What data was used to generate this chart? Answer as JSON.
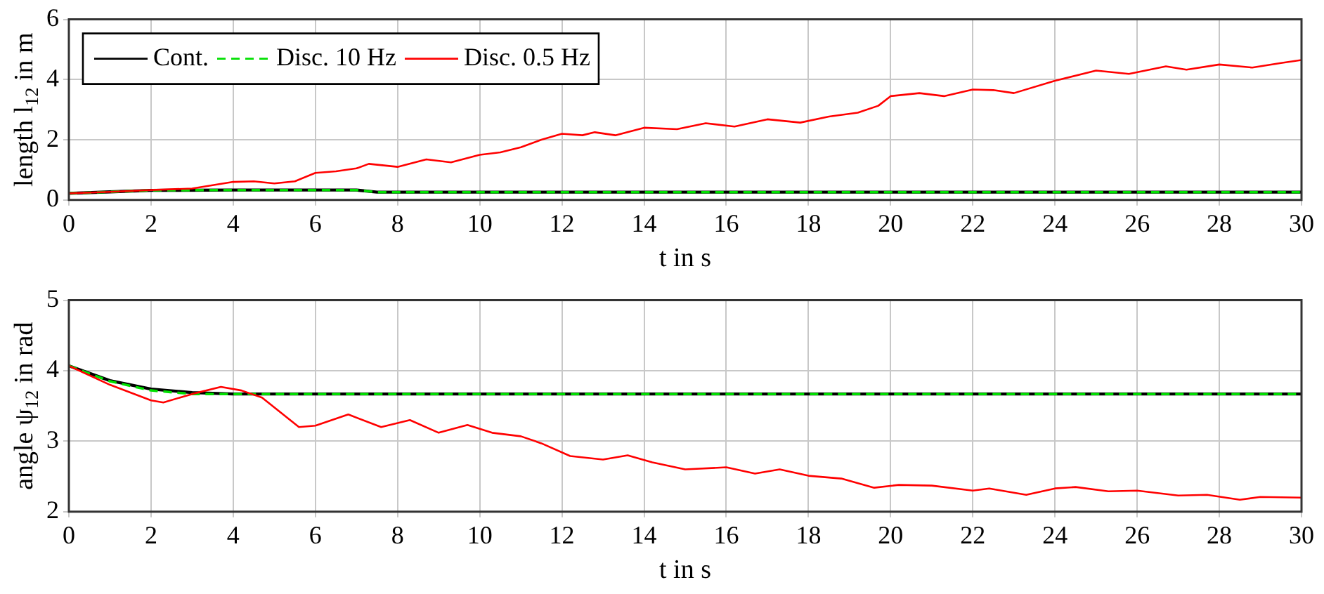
{
  "chart_data": [
    {
      "type": "line",
      "xlabel": "t in s",
      "ylabel": "length l$_{12}$ in m",
      "xlim": [
        0,
        30
      ],
      "ylim": [
        0,
        6
      ],
      "xticks": [
        0,
        2,
        4,
        6,
        8,
        10,
        12,
        14,
        16,
        18,
        20,
        22,
        24,
        26,
        28,
        30
      ],
      "yticks": [
        0,
        2,
        4,
        6
      ],
      "grid": true,
      "legend": "top left",
      "marker": "none",
      "series": [
        {
          "name": "Cont.",
          "color": "#000000",
          "line_style": "solid",
          "x": [
            0,
            1,
            2,
            4,
            7,
            7.5,
            30
          ],
          "values": [
            0.22,
            0.27,
            0.32,
            0.33,
            0.33,
            0.26,
            0.26
          ]
        },
        {
          "name": "Disc. 10 Hz",
          "color": "#00e000",
          "line_style": "dashed",
          "x": [
            0,
            1,
            2,
            4,
            7,
            7.5,
            30
          ],
          "values": [
            0.22,
            0.27,
            0.32,
            0.33,
            0.33,
            0.26,
            0.26
          ]
        },
        {
          "name": "Disc. 0.5 Hz",
          "color": "#ff0000",
          "line_style": "solid",
          "x": [
            0,
            1,
            2,
            3,
            4,
            4.5,
            5,
            5.5,
            6,
            6.5,
            7,
            7.3,
            8,
            8.7,
            9.3,
            10,
            10.5,
            11,
            11.5,
            12,
            12.5,
            12.8,
            13.3,
            14,
            14.8,
            15.5,
            16.2,
            17,
            17.8,
            18.5,
            19.2,
            19.7,
            20,
            20.7,
            21.3,
            22,
            22.5,
            23,
            24,
            25,
            25.8,
            26.7,
            27.2,
            28,
            28.8,
            29.5,
            30
          ],
          "values": [
            0.22,
            0.27,
            0.33,
            0.38,
            0.6,
            0.62,
            0.55,
            0.62,
            0.9,
            0.95,
            1.05,
            1.2,
            1.1,
            1.35,
            1.25,
            1.5,
            1.58,
            1.75,
            2.0,
            2.2,
            2.15,
            2.25,
            2.15,
            2.4,
            2.35,
            2.55,
            2.44,
            2.68,
            2.57,
            2.77,
            2.9,
            3.13,
            3.45,
            3.55,
            3.45,
            3.67,
            3.65,
            3.55,
            3.96,
            4.3,
            4.19,
            4.44,
            4.33,
            4.5,
            4.4,
            4.55,
            4.65
          ]
        }
      ]
    },
    {
      "type": "line",
      "xlabel": "t in s",
      "ylabel": "angle ψ$_{12}$ in rad",
      "xlim": [
        0,
        30
      ],
      "ylim": [
        2,
        5
      ],
      "xticks": [
        0,
        2,
        4,
        6,
        8,
        10,
        12,
        14,
        16,
        18,
        20,
        22,
        24,
        26,
        28,
        30
      ],
      "yticks": [
        2,
        3,
        4,
        5
      ],
      "grid": true,
      "marker": "none",
      "series": [
        {
          "color": "#000000",
          "line_style": "solid",
          "x": [
            0,
            1,
            2,
            3,
            4,
            30
          ],
          "values": [
            4.07,
            3.86,
            3.74,
            3.69,
            3.67,
            3.67
          ]
        },
        {
          "color": "#00e000",
          "line_style": "dashed",
          "x": [
            0,
            1,
            2,
            3,
            4,
            30
          ],
          "values": [
            4.07,
            3.85,
            3.72,
            3.67,
            3.67,
            3.67
          ]
        },
        {
          "color": "#ff0000",
          "line_style": "solid",
          "x": [
            0,
            1,
            2,
            2.3,
            3,
            3.7,
            4.2,
            4.7,
            5.6,
            6,
            6.8,
            7.6,
            8.3,
            9,
            9.7,
            10.3,
            11,
            11.5,
            12.2,
            13,
            13.6,
            14.2,
            15,
            16,
            16.7,
            17.3,
            18,
            18.8,
            19.6,
            20.2,
            21,
            22,
            22.4,
            23.3,
            24,
            24.5,
            25.3,
            26,
            27,
            27.7,
            28.5,
            29,
            30
          ],
          "values": [
            4.07,
            3.8,
            3.58,
            3.55,
            3.67,
            3.77,
            3.72,
            3.62,
            3.2,
            3.22,
            3.38,
            3.2,
            3.3,
            3.12,
            3.23,
            3.12,
            3.07,
            2.97,
            2.79,
            2.74,
            2.8,
            2.7,
            2.6,
            2.63,
            2.54,
            2.6,
            2.51,
            2.47,
            2.34,
            2.38,
            2.37,
            2.3,
            2.33,
            2.24,
            2.33,
            2.35,
            2.29,
            2.3,
            2.23,
            2.24,
            2.17,
            2.21,
            2.2
          ]
        }
      ]
    }
  ]
}
